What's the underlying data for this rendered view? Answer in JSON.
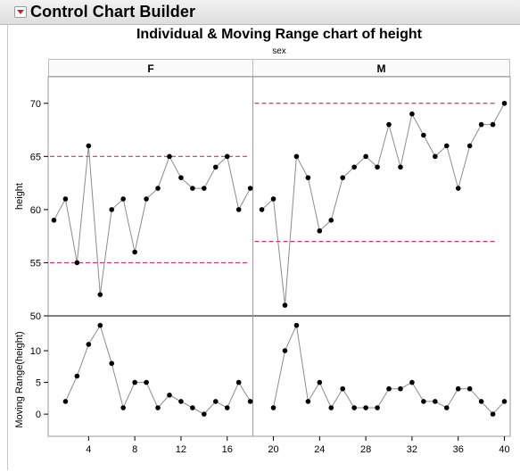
{
  "header": {
    "title": "Control Chart Builder"
  },
  "chart_data": {
    "type": "line",
    "title": "Individual & Moving Range chart of height",
    "group_title": "sex",
    "groups": [
      "F",
      "M"
    ],
    "x_ticks": [
      4,
      8,
      12,
      16,
      20,
      24,
      28,
      32,
      36,
      40
    ],
    "xlim": [
      0.5,
      40.5
    ],
    "individual": {
      "ylabel": "height",
      "ylim": [
        50,
        72.5
      ],
      "y_ticks": [
        50,
        55,
        60,
        65,
        70
      ],
      "x": [
        1,
        2,
        3,
        4,
        5,
        6,
        7,
        8,
        9,
        10,
        11,
        12,
        13,
        14,
        15,
        16,
        17,
        18,
        19,
        20,
        21,
        22,
        23,
        24,
        25,
        26,
        27,
        28,
        29,
        30,
        31,
        32,
        33,
        34,
        35,
        36,
        37,
        38,
        39,
        40
      ],
      "series": [
        {
          "group": "F",
          "x": [
            1,
            2,
            3,
            4,
            5,
            6,
            7,
            8,
            9,
            10,
            11,
            12,
            13,
            14,
            15,
            16,
            17,
            18
          ],
          "values": [
            59,
            61,
            55,
            66,
            52,
            60,
            61,
            56,
            61,
            62,
            65,
            63,
            62,
            62,
            64,
            65,
            60,
            62
          ],
          "limits": {
            "ucl": 65,
            "lcl": 55
          }
        },
        {
          "group": "M",
          "x": [
            19,
            20,
            21,
            22,
            23,
            24,
            25,
            26,
            27,
            28,
            29,
            30,
            31,
            32,
            33,
            34,
            35,
            36,
            37,
            38,
            39,
            40
          ],
          "values": [
            60,
            61,
            51,
            65,
            63,
            58,
            59,
            63,
            64,
            65,
            64,
            68,
            64,
            69,
            67,
            65,
            66,
            62,
            66,
            68,
            68,
            70
          ],
          "limits": {
            "ucl": 70,
            "lcl": 57
          }
        }
      ]
    },
    "moving_range": {
      "ylabel": "Moving Range(height)",
      "ylim": [
        -3.5,
        15.5
      ],
      "y_ticks": [
        0,
        5,
        10
      ],
      "series": [
        {
          "group": "F",
          "x": [
            2,
            3,
            4,
            5,
            6,
            7,
            8,
            9,
            10,
            11,
            12,
            13,
            14,
            15,
            16,
            17,
            18
          ],
          "values": [
            2,
            6,
            11,
            14,
            8,
            1,
            5,
            5,
            1,
            3,
            2,
            1,
            0,
            2,
            1,
            5,
            2
          ]
        },
        {
          "group": "M",
          "x": [
            20,
            21,
            22,
            23,
            24,
            25,
            26,
            27,
            28,
            29,
            30,
            31,
            32,
            33,
            34,
            35,
            36,
            37,
            38,
            39,
            40
          ],
          "values": [
            1,
            10,
            14,
            2,
            5,
            1,
            4,
            1,
            1,
            1,
            4,
            4,
            5,
            2,
            2,
            1,
            4,
            4,
            2,
            0,
            2
          ]
        }
      ]
    },
    "colors": {
      "line": "#8c8c8c",
      "point": "#000000",
      "limit": "#d6336c",
      "frame": "#555555"
    }
  }
}
